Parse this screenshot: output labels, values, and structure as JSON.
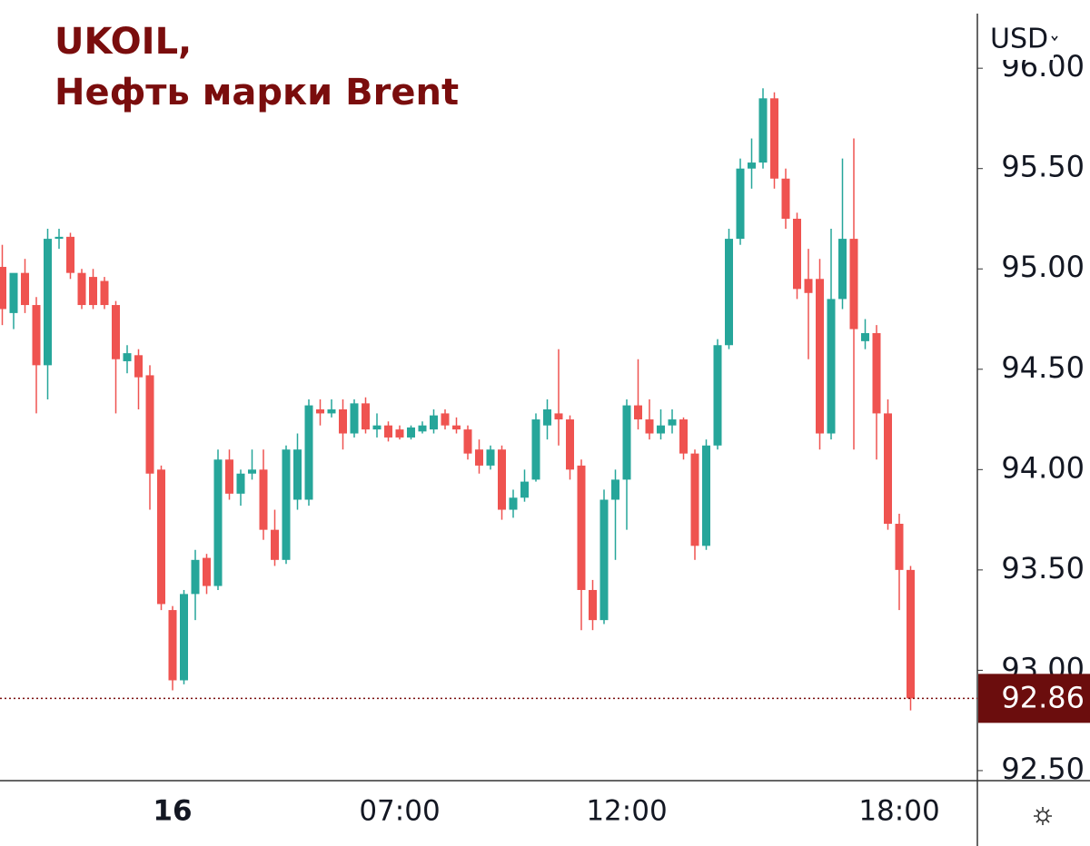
{
  "chart_data": {
    "type": "candlestick",
    "title": "UKOIL,",
    "subtitle": "Нефть марки Brent",
    "currency": "USD",
    "up_color": "#26a69a",
    "down_color": "#ef5350",
    "last_price": 92.86,
    "ylim": [
      92.45,
      96.34
    ],
    "yticks": [
      {
        "value": 92.5,
        "label": "92.50"
      },
      {
        "value": 93,
        "label": "93.00"
      },
      {
        "value": 93.5,
        "label": "93.50"
      },
      {
        "value": 94,
        "label": "94.00"
      },
      {
        "value": 94.5,
        "label": "94.50"
      },
      {
        "value": 95,
        "label": "95.00"
      },
      {
        "value": 95.5,
        "label": "95.50"
      },
      {
        "value": 96,
        "label": "96.00"
      }
    ],
    "categories": [
      null,
      null,
      null,
      null,
      null,
      null,
      null,
      null,
      null,
      null,
      null,
      null,
      null,
      null,
      null,
      "16",
      null,
      null,
      null,
      null,
      null,
      null,
      null,
      null,
      null,
      null,
      null,
      null,
      null,
      null,
      null,
      null,
      null,
      null,
      null,
      "07:00",
      null,
      null,
      null,
      null,
      null,
      null,
      null,
      null,
      null,
      null,
      null,
      null,
      null,
      null,
      null,
      null,
      null,
      null,
      null,
      "12:00",
      null,
      null,
      null,
      null,
      null,
      null,
      null,
      null,
      null,
      null,
      null,
      null,
      null,
      null,
      null,
      null,
      null,
      null,
      null,
      null,
      null,
      null,
      null,
      "18:00",
      null
    ],
    "open": [
      95.01,
      94.78,
      94.98,
      94.82,
      94.52,
      95.15,
      95.16,
      94.98,
      94.96,
      94.94,
      94.82,
      94.54,
      94.57,
      94.47,
      94.0,
      93.3,
      92.95,
      93.38,
      93.56,
      93.42,
      94.05,
      93.88,
      93.98,
      94.0,
      93.7,
      93.55,
      93.85,
      93.85,
      94.3,
      94.28,
      94.3,
      94.18,
      94.33,
      94.2,
      94.22,
      94.2,
      94.16,
      94.19,
      94.2,
      94.28,
      94.22,
      94.2,
      94.1,
      94.02,
      94.1,
      93.8,
      93.86,
      93.95,
      94.22,
      94.28,
      94.25,
      94.02,
      93.4,
      93.25,
      93.85,
      93.95,
      94.32,
      94.25,
      94.18,
      94.22,
      94.25,
      94.08,
      93.62,
      94.12,
      94.62,
      95.15,
      95.5,
      95.53,
      95.85,
      95.45,
      95.25,
      94.95,
      94.95,
      94.18,
      94.85,
      95.15,
      94.64,
      94.68,
      94.28,
      93.73,
      93.5
    ],
    "high": [
      95.12,
      94.96,
      95.05,
      94.86,
      95.2,
      95.2,
      95.18,
      95.0,
      95.0,
      94.96,
      94.84,
      94.62,
      94.6,
      94.52,
      94.02,
      93.32,
      93.4,
      93.6,
      93.58,
      94.1,
      94.1,
      94.0,
      94.1,
      94.1,
      93.8,
      94.12,
      94.18,
      94.35,
      94.35,
      94.35,
      94.35,
      94.35,
      94.36,
      94.28,
      94.24,
      94.22,
      94.22,
      94.24,
      94.3,
      94.3,
      94.26,
      94.22,
      94.15,
      94.12,
      94.12,
      93.9,
      94.0,
      94.28,
      94.35,
      94.6,
      94.27,
      94.05,
      93.45,
      93.9,
      94.0,
      94.35,
      94.55,
      94.35,
      94.3,
      94.3,
      94.26,
      94.1,
      94.15,
      94.65,
      95.2,
      95.55,
      95.65,
      95.9,
      95.88,
      95.5,
      95.28,
      95.1,
      95.05,
      95.2,
      95.55,
      95.65,
      94.75,
      94.72,
      94.35,
      93.78,
      93.52
    ],
    "low": [
      94.72,
      94.7,
      94.78,
      94.28,
      94.35,
      95.1,
      94.95,
      94.8,
      94.8,
      94.8,
      94.28,
      94.48,
      94.3,
      93.8,
      93.3,
      92.9,
      92.93,
      93.25,
      93.38,
      93.4,
      93.85,
      93.82,
      93.95,
      93.65,
      93.52,
      93.53,
      93.8,
      93.82,
      94.22,
      94.26,
      94.1,
      94.16,
      94.18,
      94.16,
      94.14,
      94.15,
      94.15,
      94.18,
      94.18,
      94.2,
      94.18,
      94.05,
      93.98,
      94.0,
      93.75,
      93.76,
      93.84,
      93.94,
      94.15,
      94.12,
      93.95,
      93.2,
      93.2,
      93.23,
      93.55,
      93.7,
      94.2,
      94.15,
      94.15,
      94.18,
      94.05,
      93.55,
      93.6,
      94.1,
      94.6,
      95.12,
      95.4,
      95.5,
      95.4,
      95.2,
      94.85,
      94.55,
      94.1,
      94.15,
      94.8,
      94.1,
      94.6,
      94.05,
      93.7,
      93.3,
      92.8
    ],
    "close": [
      94.8,
      94.98,
      94.82,
      94.52,
      95.15,
      95.16,
      94.98,
      94.82,
      94.82,
      94.82,
      94.55,
      94.58,
      94.46,
      93.98,
      93.33,
      92.95,
      93.38,
      93.55,
      93.42,
      94.05,
      93.88,
      93.98,
      94.0,
      93.7,
      93.55,
      94.1,
      94.1,
      94.32,
      94.28,
      94.3,
      94.18,
      94.33,
      94.2,
      94.22,
      94.16,
      94.16,
      94.21,
      94.22,
      94.27,
      94.22,
      94.2,
      94.08,
      94.02,
      94.1,
      93.8,
      93.86,
      93.94,
      94.25,
      94.3,
      94.25,
      94.0,
      93.4,
      93.25,
      93.85,
      93.95,
      94.32,
      94.25,
      94.18,
      94.22,
      94.25,
      94.08,
      93.62,
      94.12,
      94.62,
      95.15,
      95.5,
      95.53,
      95.85,
      95.45,
      95.25,
      94.9,
      94.88,
      94.18,
      94.85,
      95.15,
      94.7,
      94.68,
      94.28,
      93.73,
      93.5,
      92.86
    ]
  }
}
